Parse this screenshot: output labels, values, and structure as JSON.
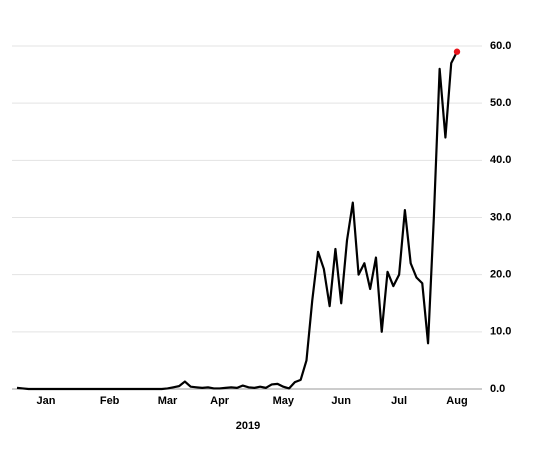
{
  "chart_data": {
    "type": "line",
    "xlabel": "2019",
    "categories": [
      null,
      null,
      null,
      null,
      null,
      "Jan",
      null,
      null,
      null,
      null,
      null,
      null,
      null,
      null,
      null,
      null,
      "Feb",
      null,
      null,
      null,
      null,
      null,
      null,
      null,
      null,
      null,
      "Mar",
      null,
      null,
      null,
      null,
      null,
      null,
      null,
      null,
      "Apr",
      null,
      null,
      null,
      null,
      null,
      null,
      null,
      null,
      null,
      null,
      "May",
      null,
      null,
      null,
      null,
      null,
      null,
      null,
      null,
      null,
      "Jun",
      null,
      null,
      null,
      null,
      null,
      null,
      null,
      null,
      null,
      "Jul",
      null,
      null,
      null,
      null,
      null,
      null,
      null,
      null,
      null,
      "Aug"
    ],
    "values": [
      0.2,
      0.1,
      0,
      0,
      0,
      0,
      0,
      0,
      0,
      0,
      0,
      0,
      0,
      0,
      0,
      0,
      0,
      0,
      0,
      0,
      0,
      0,
      0,
      0,
      0,
      0,
      0.1,
      0.3,
      0.5,
      1.3,
      0.4,
      0.3,
      0.2,
      0.3,
      0.1,
      0.1,
      0.2,
      0.3,
      0.2,
      0.6,
      0.3,
      0.2,
      0.4,
      0.2,
      0.8,
      0.9,
      0.4,
      0.1,
      1.2,
      1.6,
      5,
      15.5,
      24,
      21,
      14.5,
      24.5,
      15,
      26,
      32.6,
      20,
      22,
      17.5,
      23,
      10,
      20.5,
      18,
      20,
      31.3,
      22,
      19.5,
      18.5,
      8,
      30,
      56,
      44,
      57,
      59
    ],
    "color": "#000000",
    "last_point_color": "#e8141b",
    "ylim": [
      0,
      60
    ],
    "yticks": [
      {
        "value": 0,
        "label": "0.0"
      },
      {
        "value": 10,
        "label": "10.0"
      },
      {
        "value": 20,
        "label": "20.0"
      },
      {
        "value": 30,
        "label": "30.0"
      },
      {
        "value": 40,
        "label": "40.0"
      },
      {
        "value": 50,
        "label": "50.0"
      },
      {
        "value": 60,
        "label": "60.0"
      }
    ],
    "grid": true
  }
}
